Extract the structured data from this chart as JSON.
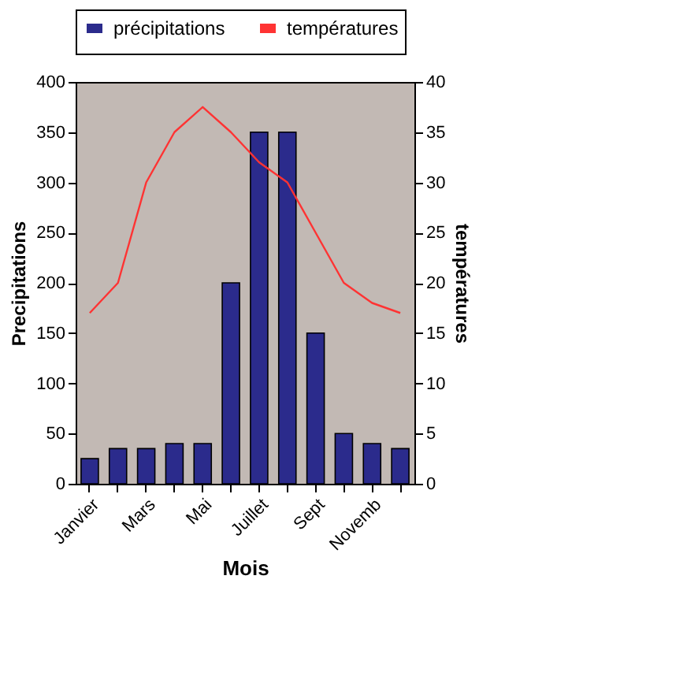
{
  "chart_data": {
    "type": "bar",
    "categories": [
      "Janvier",
      null,
      "Mars",
      null,
      "Mai",
      null,
      "Juillet",
      null,
      "Sept",
      null,
      "Novemb",
      null
    ],
    "xlabel": "Mois",
    "ylabel": "Precipitations",
    "y2label": "températures",
    "series": [
      {
        "name": "précipitations",
        "color": "#2b2b8c",
        "values": [
          25,
          35,
          35,
          40,
          40,
          200,
          350,
          350,
          150,
          50,
          40,
          35
        ]
      },
      {
        "name": "températures",
        "type": "line",
        "axis": "y2",
        "color": "#ff3333",
        "values": [
          17,
          20,
          30,
          35,
          37.5,
          35,
          32,
          30,
          25,
          20,
          18,
          17
        ]
      }
    ],
    "ylim": [
      0,
      400
    ],
    "yticks": [
      0,
      50,
      100,
      150,
      200,
      250,
      300,
      350,
      400
    ],
    "y2lim": [
      0,
      40
    ],
    "y2ticks": [
      0,
      5,
      10,
      15,
      20,
      25,
      30,
      35,
      40
    ],
    "legend": "top",
    "grid": false,
    "marker": "none",
    "line_style": "solid"
  }
}
